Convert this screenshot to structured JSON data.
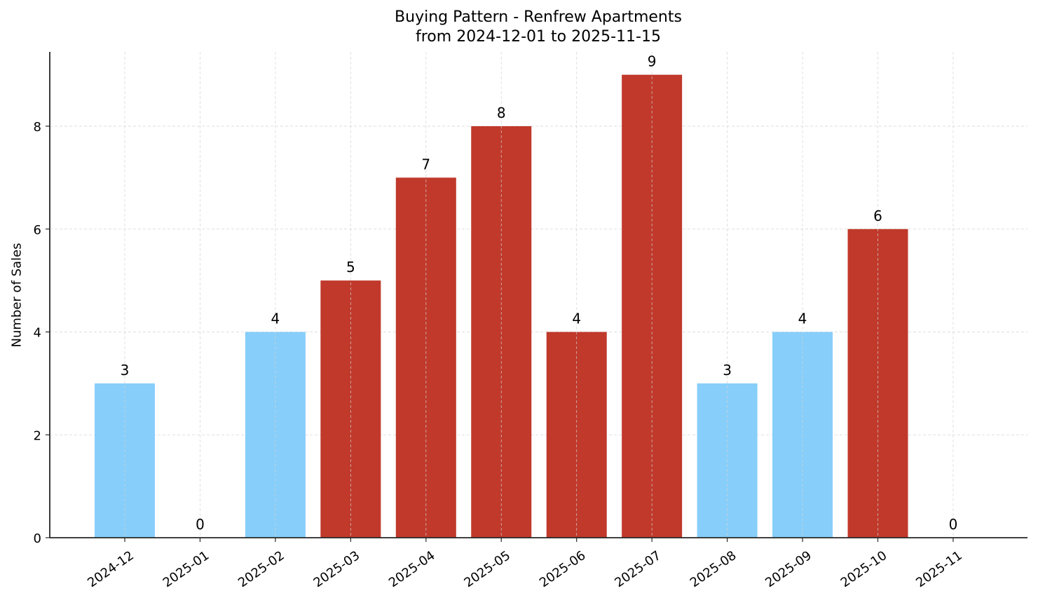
{
  "chart_data": {
    "type": "bar",
    "title": "Buying Pattern - Renfrew Apartments",
    "subtitle": "from 2024-12-01 to 2025-11-15",
    "xlabel": "",
    "ylabel": "Number of Sales",
    "categories": [
      "2024-12",
      "2025-01",
      "2025-02",
      "2025-03",
      "2025-04",
      "2025-05",
      "2025-06",
      "2025-07",
      "2025-08",
      "2025-09",
      "2025-10",
      "2025-11"
    ],
    "values": [
      3,
      0,
      4,
      5,
      7,
      8,
      4,
      9,
      3,
      4,
      6,
      0
    ],
    "bar_colors": [
      "#87cefa",
      "#87cefa",
      "#87cefa",
      "#c0392b",
      "#c0392b",
      "#c0392b",
      "#c0392b",
      "#c0392b",
      "#87cefa",
      "#87cefa",
      "#c0392b",
      "#87cefa"
    ],
    "data_labels": [
      "3",
      "0",
      "4",
      "5",
      "7",
      "8",
      "4",
      "9",
      "3",
      "4",
      "6",
      "0"
    ],
    "yticks": [
      0,
      2,
      4,
      6,
      8
    ],
    "ylim": [
      0,
      9.45
    ],
    "grid": true,
    "grid_style": "dashed",
    "legend": null,
    "xtick_rotation": 35
  },
  "colors": {
    "high": "#c0392b",
    "low": "#87cefa",
    "grid": "#d3d3d3",
    "axis": "#262626"
  }
}
